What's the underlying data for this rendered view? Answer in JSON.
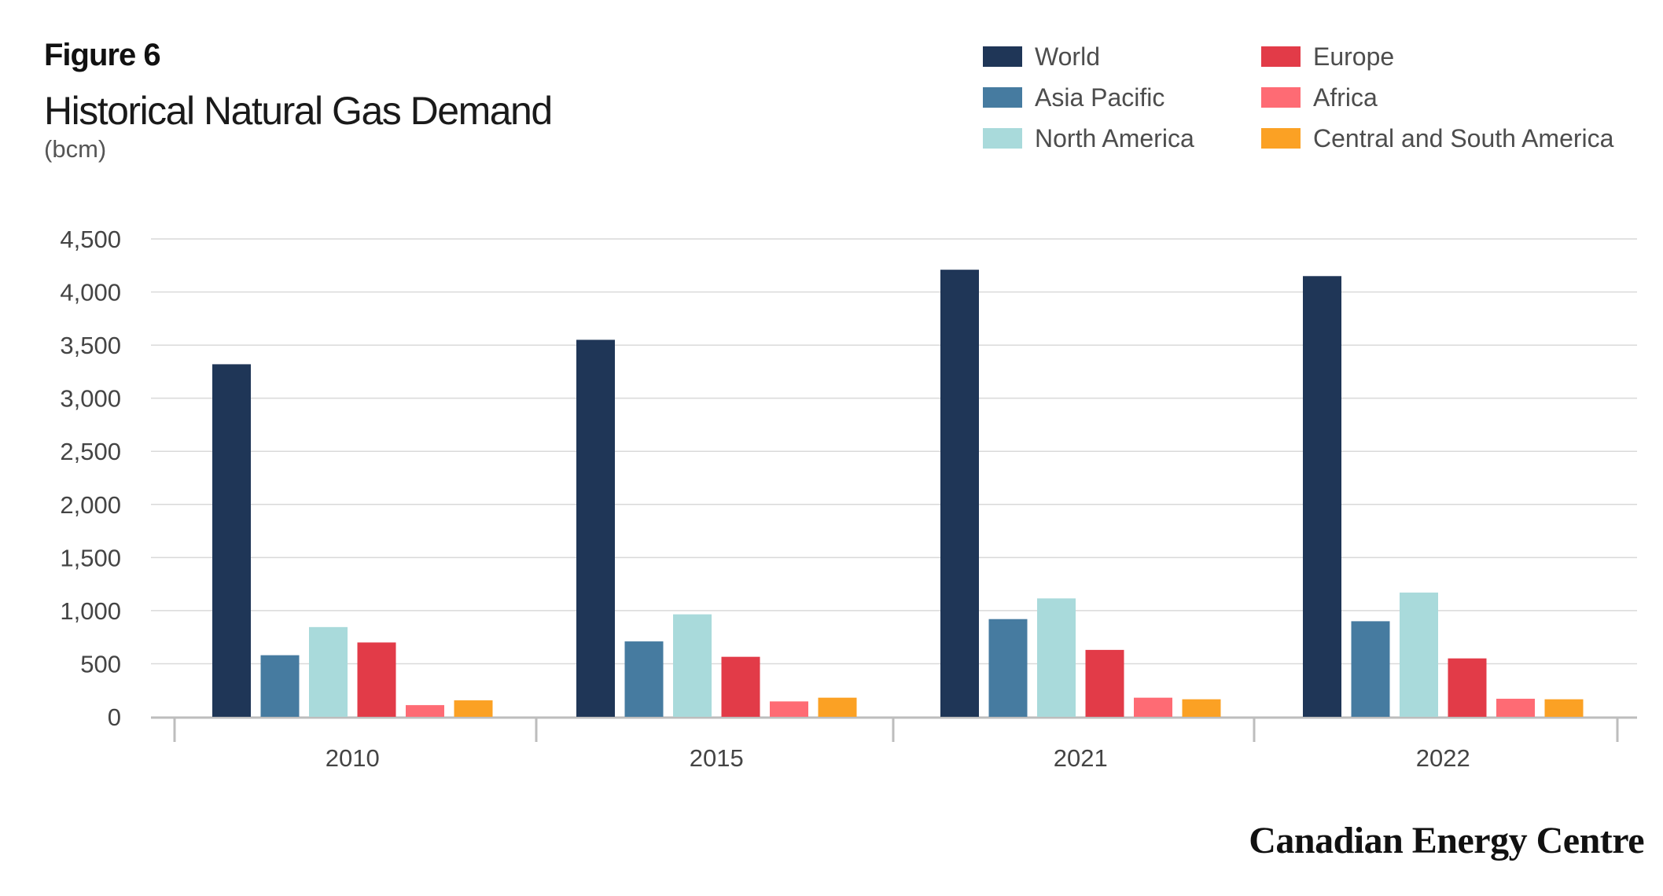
{
  "figure_label": "Figure 6",
  "brand": "Canadian Energy Centre",
  "chart_data": {
    "type": "bar",
    "title": "Historical Natural Gas Demand",
    "subtitle": "(bcm)",
    "xlabel": "",
    "ylabel": "",
    "categories": [
      "2010",
      "2015",
      "2021",
      "2022"
    ],
    "ylim": [
      0,
      4500
    ],
    "yticks": [
      0,
      500,
      1000,
      1500,
      2000,
      2500,
      3000,
      3500,
      4000,
      4500
    ],
    "ytick_labels": [
      "0",
      "500",
      "1,000",
      "1,500",
      "2,000",
      "2,500",
      "3,000",
      "3,500",
      "4,000",
      "4,500"
    ],
    "grid": true,
    "legend_position": "top-right",
    "series": [
      {
        "name": "World",
        "color": "#1f3657",
        "values": [
          3320,
          3550,
          4210,
          4150
        ]
      },
      {
        "name": "Asia Pacific",
        "color": "#467ba0",
        "values": [
          580,
          710,
          920,
          900
        ]
      },
      {
        "name": "North America",
        "color": "#a9dadb",
        "values": [
          845,
          965,
          1115,
          1170
        ]
      },
      {
        "name": "Europe",
        "color": "#e23b48",
        "values": [
          700,
          565,
          630,
          550
        ]
      },
      {
        "name": "Africa",
        "color": "#fe6b74",
        "values": [
          110,
          145,
          180,
          170
        ]
      },
      {
        "name": "Central and South America",
        "color": "#fba124",
        "values": [
          155,
          180,
          165,
          165
        ]
      }
    ]
  }
}
